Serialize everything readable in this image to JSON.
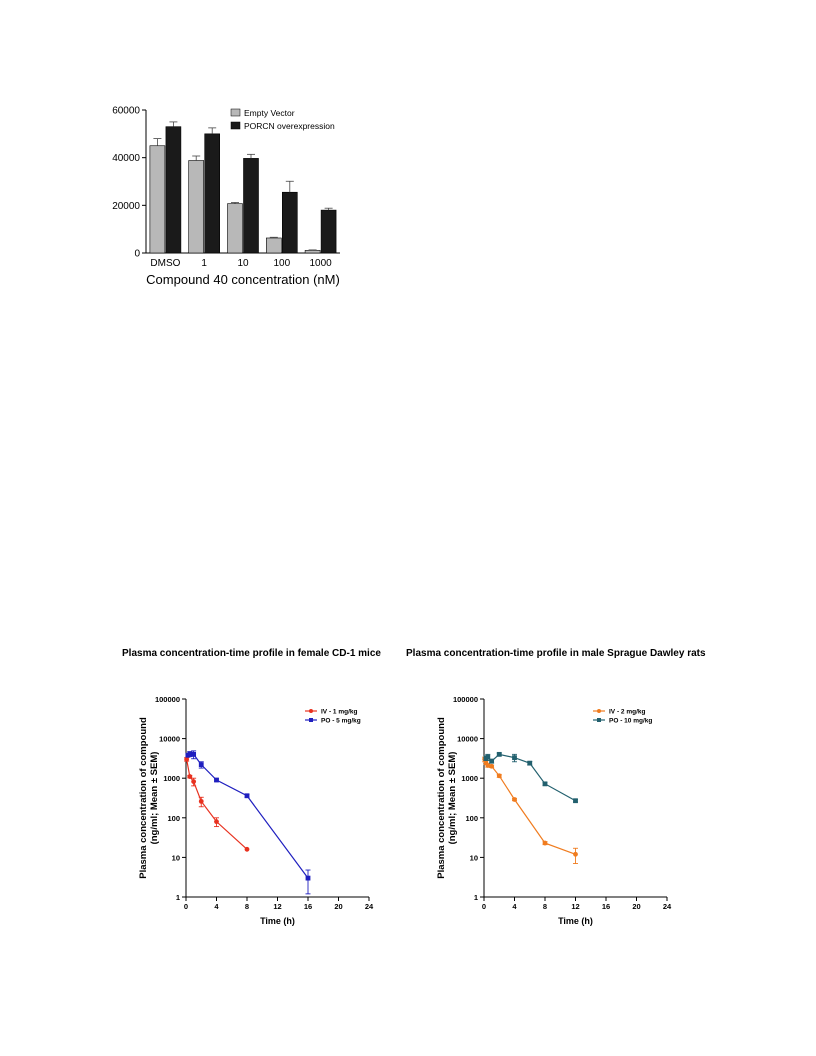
{
  "chart_data": [
    {
      "id": "bar",
      "type": "bar",
      "title": "",
      "xlabel": "Compound 40 concentration (nM)",
      "ylabel": "",
      "categories": [
        "DMSO",
        "1",
        "10",
        "100",
        "1000"
      ],
      "ylim": [
        0,
        60000
      ],
      "yticks": [
        "0",
        "20000",
        "40000",
        "60000"
      ],
      "series": [
        {
          "name": "Empty Vector",
          "color": "#b8b8b8",
          "values": [
            45000,
            38800,
            20700,
            6300,
            1100
          ],
          "errors": [
            3000,
            1900,
            500,
            300,
            200
          ]
        },
        {
          "name": "PORCN overexpression",
          "color": "#1a1a1a",
          "values": [
            53000,
            50000,
            39700,
            25500,
            18000
          ],
          "errors": [
            2000,
            2500,
            1700,
            4600,
            800
          ]
        }
      ],
      "legend": "top-right",
      "grid": false
    },
    {
      "id": "mice",
      "type": "line",
      "title": "Plasma concentration-time profile in female CD-1 mice",
      "xlabel": "Time (h)",
      "ylabel": "Plasma concentration of compound (ng/ml; Mean ± SEM)",
      "xlim": [
        0,
        24
      ],
      "xticks": [
        "0",
        "4",
        "8",
        "12",
        "16",
        "20",
        "24"
      ],
      "ylim": [
        1,
        100000
      ],
      "yscale": "log",
      "yticks": [
        "1",
        "10",
        "100",
        "1000",
        "10000",
        "100000"
      ],
      "series": [
        {
          "name": "IV - 1 mg/kg",
          "color": "#e8311f",
          "marker": "circle",
          "x": [
            0.083,
            0.5,
            1,
            2,
            4,
            8
          ],
          "y": [
            3000,
            1100,
            820,
            260,
            80,
            16
          ],
          "err": [
            300,
            80,
            180,
            70,
            20,
            0
          ]
        },
        {
          "name": "PO - 5 mg/kg",
          "color": "#1f1fbf",
          "marker": "square",
          "x": [
            0.25,
            0.5,
            1,
            2,
            4,
            8,
            16
          ],
          "y": [
            3800,
            4100,
            4000,
            2200,
            900,
            360,
            3
          ],
          "err": [
            300,
            600,
            900,
            400,
            60,
            30,
            1.8
          ]
        }
      ],
      "legend": "top-right",
      "grid": false
    },
    {
      "id": "rats",
      "type": "line",
      "title": "Plasma concentration-time profile in male Sprague Dawley rats",
      "xlabel": "Time (h)",
      "ylabel": "Plasma concentration of compound (ng/ml; Mean ± SEM)",
      "xlim": [
        0,
        24
      ],
      "xticks": [
        "0",
        "4",
        "8",
        "12",
        "16",
        "20",
        "24"
      ],
      "ylim": [
        1,
        100000
      ],
      "yscale": "log",
      "yticks": [
        "1",
        "10",
        "100",
        "1000",
        "10000",
        "100000"
      ],
      "series": [
        {
          "name": "IV - 2 mg/kg",
          "color": "#f07c1f",
          "marker": "circle",
          "x": [
            0.083,
            0.25,
            0.5,
            1,
            2,
            4,
            8,
            12
          ],
          "y": [
            3000,
            2500,
            2100,
            2000,
            1150,
            290,
            23,
            12
          ],
          "err": [
            400,
            300,
            200,
            150,
            100,
            20,
            2,
            5
          ]
        },
        {
          "name": "PO - 10 mg/kg",
          "color": "#22606e",
          "marker": "square",
          "x": [
            0.25,
            0.5,
            1,
            2,
            4,
            6,
            8,
            12
          ],
          "y": [
            3200,
            3400,
            2700,
            4000,
            3300,
            2400,
            720,
            270
          ],
          "err": [
            400,
            600,
            300,
            300,
            700,
            250,
            60,
            20
          ]
        }
      ],
      "legend": "top-right",
      "grid": false
    }
  ]
}
